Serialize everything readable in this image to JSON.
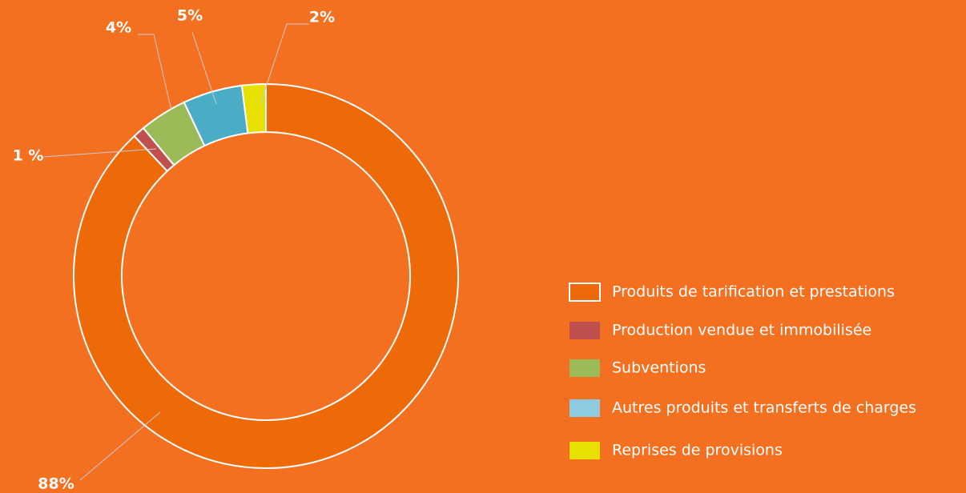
{
  "chart_data": {
    "type": "donut",
    "categories": [
      "Produits de tarification et prestations",
      "Production vendue et immobilisée",
      "Subventions",
      "Autres produits et transferts de charges",
      "Reprises de provisions"
    ],
    "values": [
      88,
      1,
      4,
      5,
      2
    ],
    "value_labels": [
      "88%",
      "1 %",
      "4%",
      "5%",
      "2%"
    ],
    "colors": [
      "#ee6a08",
      "#c0504d",
      "#9bbb59",
      "#4bacc6",
      "#e8e000"
    ],
    "legend_colors": [
      "#ee6a08",
      "#c0504d",
      "#9bbb59",
      "#8ccbe0",
      "#e8e000"
    ],
    "legend": "right"
  }
}
